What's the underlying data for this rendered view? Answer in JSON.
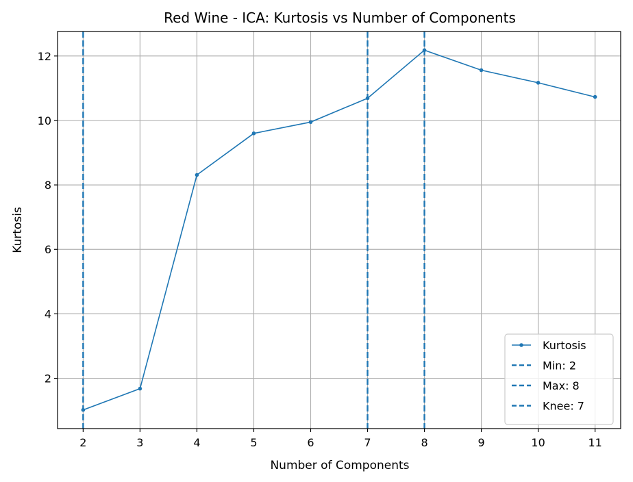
{
  "chart_data": {
    "type": "line",
    "title": "Red Wine - ICA: Kurtosis vs Number of Components",
    "xlabel": "Number of Components",
    "ylabel": "Kurtosis",
    "x": [
      2,
      3,
      4,
      5,
      6,
      7,
      8,
      9,
      10,
      11
    ],
    "series": [
      {
        "name": "Kurtosis",
        "values": [
          1.02,
          1.68,
          8.31,
          9.6,
          9.95,
          10.69,
          12.18,
          11.56,
          11.17,
          10.73
        ],
        "color": "#1f77b4"
      }
    ],
    "xlim": [
      1.55,
      11.45
    ],
    "ylim": [
      0.44,
      12.76
    ],
    "xticks": [
      2,
      3,
      4,
      5,
      6,
      7,
      8,
      9,
      10,
      11
    ],
    "yticks": [
      2,
      4,
      6,
      8,
      10,
      12
    ],
    "vlines": [
      {
        "label": "Min: 2",
        "x": 2,
        "style": "dashed",
        "color": "#1f77b4"
      },
      {
        "label": "Max: 8",
        "x": 8,
        "style": "dashed",
        "color": "#1f77b4"
      },
      {
        "label": "Knee: 7",
        "x": 7,
        "style": "dashed",
        "color": "#1f77b4"
      }
    ],
    "grid": true,
    "legend_position": "lower-right"
  }
}
